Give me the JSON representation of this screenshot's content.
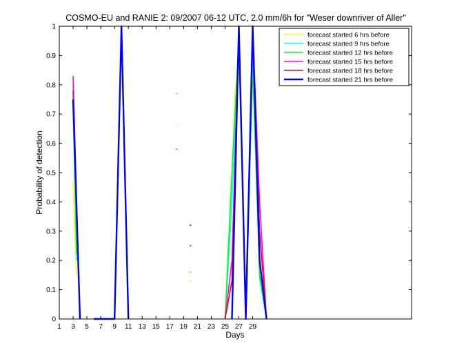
{
  "chart_data": {
    "type": "line",
    "title": "COSMO-EU and RANIE 2: 09/2007 06-12 UTC, 2.0 mm/6h for \"Weser downriver of Aller\"",
    "xlabel": "Days",
    "ylabel": "Probability of detection",
    "xlim": [
      1,
      52
    ],
    "ylim": [
      0,
      1
    ],
    "xticks": [
      1,
      3,
      5,
      7,
      9,
      11,
      13,
      15,
      17,
      19,
      21,
      23,
      25,
      27,
      29
    ],
    "yticks": [
      0,
      0.1,
      0.2,
      0.3,
      0.4,
      0.5,
      0.6,
      0.7,
      0.8,
      0.9,
      1
    ],
    "grid": false,
    "legend_position": "top-right",
    "series": [
      {
        "name": "forecast started 6 hrs before",
        "color": "#ffff00",
        "segments": [
          [
            [
              3,
              0.47
            ],
            [
              3.5,
              0.15
            ]
          ],
          [
            [
              9,
              0
            ],
            [
              10,
              1
            ],
            [
              11,
              0
            ]
          ],
          [
            [
              25,
              0
            ],
            [
              26,
              0.5
            ],
            [
              26.5,
              0.78
            ],
            [
              27,
              0.9
            ],
            [
              28,
              0
            ],
            [
              29,
              0.95
            ],
            [
              30,
              0.15
            ],
            [
              31,
              0
            ]
          ]
        ],
        "points": [
          [
            18,
            0.66
          ],
          [
            20,
            0.13
          ]
        ]
      },
      {
        "name": "forecast started 9 hrs before",
        "color": "#00ffff",
        "segments": [
          [
            [
              3,
              0.73
            ],
            [
              3.5,
              0.2
            ]
          ],
          [
            [
              9,
              0
            ],
            [
              10,
              1
            ],
            [
              11,
              0
            ]
          ],
          [
            [
              25,
              0
            ],
            [
              26,
              0.4
            ],
            [
              27,
              0.97
            ],
            [
              28,
              0
            ],
            [
              29,
              0.9
            ],
            [
              30,
              0.14
            ],
            [
              31,
              0
            ]
          ]
        ],
        "points": [
          [
            18,
            0.77
          ],
          [
            20,
            0.16
          ]
        ]
      },
      {
        "name": "forecast started 12 hrs before",
        "color": "#00ff00",
        "segments": [
          [
            [
              3,
              0.8
            ],
            [
              3.5,
              0.22
            ]
          ],
          [
            [
              9,
              0
            ],
            [
              10,
              1
            ],
            [
              11,
              0
            ]
          ],
          [
            [
              25,
              0
            ],
            [
              26,
              0.5
            ],
            [
              27,
              0.96
            ],
            [
              28,
              0
            ],
            [
              29,
              0.86
            ],
            [
              30,
              0.15
            ],
            [
              31,
              0
            ]
          ]
        ],
        "points": [
          [
            18,
            0.58
          ]
        ]
      },
      {
        "name": "forecast started 15 hrs before",
        "color": "#ff00ff",
        "segments": [
          [
            [
              3,
              0.83
            ],
            [
              4,
              0
            ]
          ],
          [
            [
              9,
              0
            ],
            [
              10,
              1
            ],
            [
              11,
              0
            ]
          ],
          [
            [
              25,
              0
            ],
            [
              26,
              0.2
            ],
            [
              27,
              1
            ],
            [
              28,
              0
            ],
            [
              29,
              1
            ],
            [
              30,
              0.4
            ],
            [
              31,
              0
            ]
          ]
        ],
        "points": [
          [
            20,
            0.25
          ]
        ]
      },
      {
        "name": "forecast started 18 hrs before",
        "color": "#ff0000",
        "segments": [
          [
            [
              3,
              0.78
            ],
            [
              4,
              0
            ]
          ],
          [
            [
              9,
              0
            ],
            [
              10,
              1
            ],
            [
              11,
              0
            ]
          ],
          [
            [
              25,
              0
            ],
            [
              26,
              0.13
            ],
            [
              27,
              1
            ],
            [
              28,
              0
            ],
            [
              29,
              1
            ],
            [
              30,
              0.3
            ],
            [
              31,
              0
            ]
          ]
        ],
        "points": [
          [
            20,
            0.32
          ]
        ]
      },
      {
        "name": "forecast started 21 hrs before",
        "color": "#0000ff",
        "segments": [
          [
            [
              3,
              0.75
            ],
            [
              4,
              0
            ]
          ],
          [
            [
              6,
              0
            ],
            [
              9,
              0
            ],
            [
              10,
              1
            ],
            [
              11,
              0
            ]
          ],
          [
            [
              26,
              0
            ],
            [
              27,
              1
            ],
            [
              28,
              0
            ],
            [
              29,
              1
            ],
            [
              30,
              0.2
            ],
            [
              31,
              0
            ]
          ]
        ],
        "points": []
      }
    ]
  }
}
